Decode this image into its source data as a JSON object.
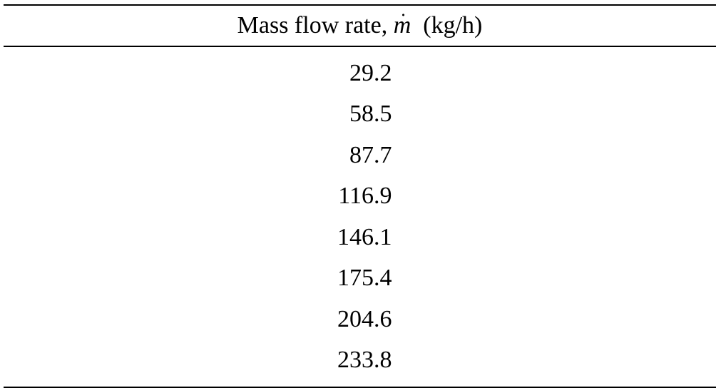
{
  "table": {
    "header": {
      "label": "Mass flow rate, ",
      "symbol": "m",
      "symbol_accent": "˙",
      "unit": "  (kg/h)"
    },
    "rows": [
      "29.2",
      "58.5",
      "87.7",
      "116.9",
      "146.1",
      "175.4",
      "204.6",
      "233.8"
    ]
  }
}
